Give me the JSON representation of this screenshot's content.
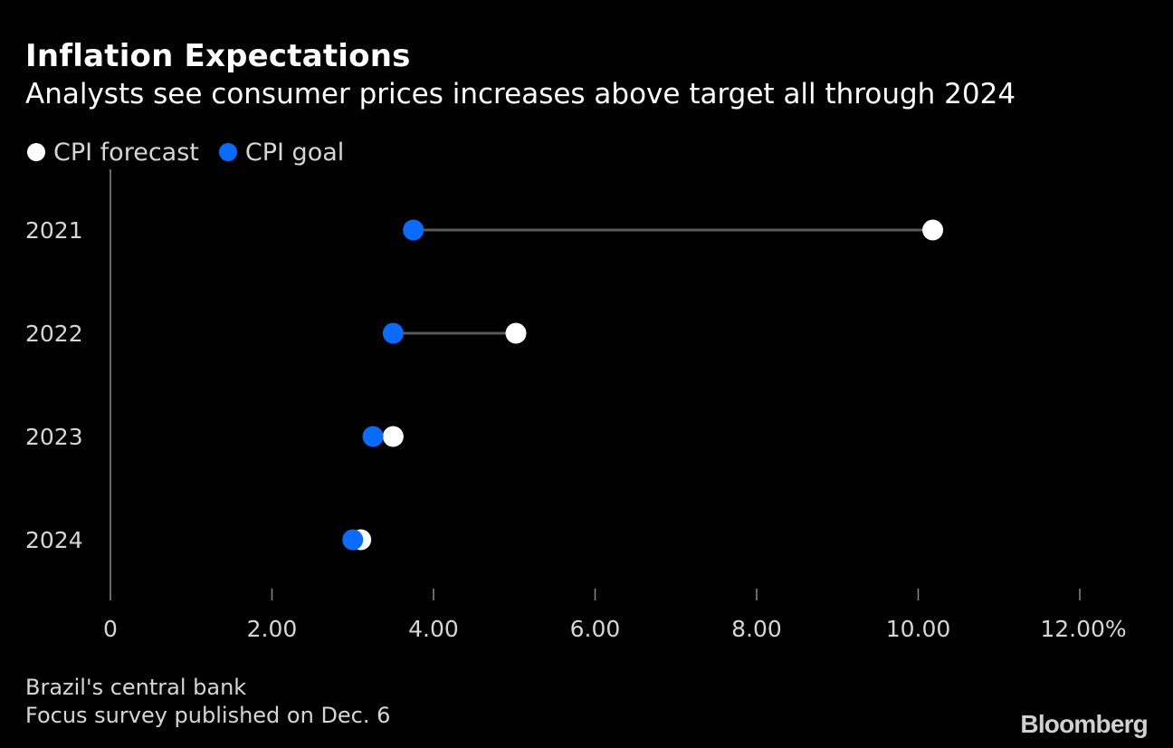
{
  "header": {
    "title": "Inflation Expectations",
    "subtitle": "Analysts see consumer prices increases above target all through 2024"
  },
  "legend": {
    "items": [
      {
        "label": "CPI forecast",
        "color": "#ffffff"
      },
      {
        "label": "CPI goal",
        "color": "#0a6cff"
      }
    ]
  },
  "chart_data": {
    "type": "dot-range",
    "categories": [
      "2021",
      "2022",
      "2023",
      "2024"
    ],
    "series": [
      {
        "name": "CPI forecast",
        "color": "#ffffff",
        "values": [
          10.18,
          5.02,
          3.5,
          3.1
        ]
      },
      {
        "name": "CPI goal",
        "color": "#0a6cff",
        "values": [
          3.75,
          3.5,
          3.25,
          3.0
        ]
      }
    ],
    "xlim": [
      0,
      12
    ],
    "x_ticks": [
      0,
      2,
      4,
      6,
      8,
      10,
      12
    ],
    "x_tick_labels": [
      "0",
      "2.00",
      "4.00",
      "6.00",
      "8.00",
      "10.00",
      "12.00%"
    ],
    "connector_color": "#5a5a5a",
    "legend_position": "top-left",
    "grid": false
  },
  "footer": {
    "source_lines": [
      "Brazil's central bank",
      "Focus survey published on Dec. 6"
    ],
    "brand": "Bloomberg"
  }
}
